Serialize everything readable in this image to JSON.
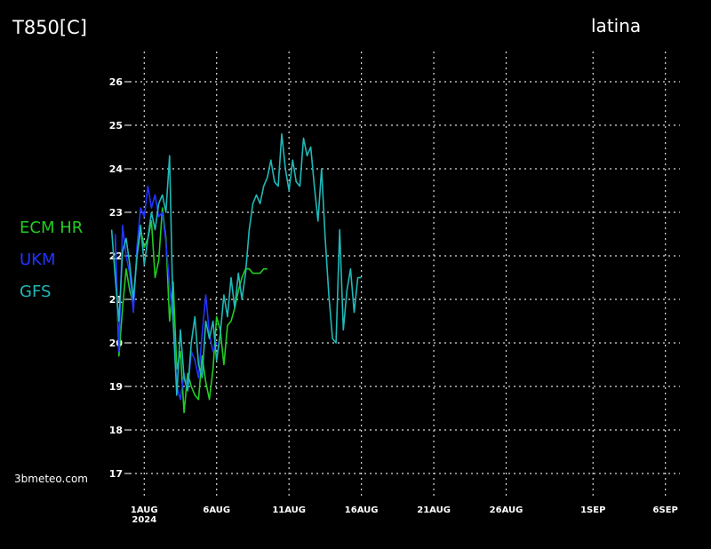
{
  "header": {
    "title": "T850[C]",
    "location": "latina"
  },
  "footer": {
    "watermark": "3bmeteo.com"
  },
  "chart_data": {
    "type": "line",
    "title": "T850[C]",
    "location": "latina",
    "xlabel": "",
    "ylabel": "",
    "ylim": [
      16.5,
      26.5
    ],
    "xlim_days": [
      30,
      68
    ],
    "y_ticks": [
      17,
      18,
      19,
      20,
      21,
      22,
      23,
      24,
      25,
      26
    ],
    "x_ticks": [
      {
        "label": "1AUG",
        "sublabel": "2024"
      },
      {
        "label": "6AUG"
      },
      {
        "label": "11AUG"
      },
      {
        "label": "16AUG"
      },
      {
        "label": "21AUG"
      },
      {
        "label": "26AUG"
      },
      {
        "label": "1SEP"
      },
      {
        "label": "6SEP"
      }
    ],
    "x_tick_days": [
      31,
      36,
      41,
      46,
      51,
      56,
      62,
      67
    ],
    "legend_placement": "left",
    "grid": true,
    "series": [
      {
        "name": "ECM HR",
        "color": "#22cc22",
        "x": [
          29.0,
          29.25,
          29.5,
          29.75,
          30.0,
          30.25,
          30.5,
          30.75,
          31.0,
          31.25,
          31.5,
          31.75,
          32.0,
          32.25,
          32.5,
          32.75,
          33.0,
          33.25,
          33.5,
          33.75,
          34.0,
          34.25,
          34.5,
          34.75,
          35.0,
          35.25,
          35.5,
          35.75,
          36.0,
          36.25,
          36.5,
          36.75,
          37.0,
          37.25,
          37.5,
          37.75,
          38.0,
          38.25,
          38.5,
          38.75,
          39.0,
          39.25,
          39.5
        ],
        "y": [
          22.4,
          19.7,
          20.8,
          21.7,
          21.2,
          20.9,
          22.0,
          22.6,
          22.2,
          22.4,
          22.8,
          21.5,
          21.9,
          23.1,
          22.4,
          20.5,
          21.4,
          19.4,
          19.8,
          18.4,
          19.3,
          19.0,
          18.8,
          18.7,
          19.7,
          19.1,
          18.7,
          19.4,
          20.6,
          20.3,
          19.5,
          20.4,
          20.5,
          20.8,
          21.2,
          21.5,
          21.7,
          21.7,
          21.6,
          21.6,
          21.6,
          21.7,
          21.7
        ]
      },
      {
        "name": "UKM",
        "color": "#2233ff",
        "x": [
          29.0,
          29.25,
          29.5,
          29.75,
          30.0,
          30.25,
          30.5,
          30.75,
          31.0,
          31.25,
          31.5,
          31.75,
          32.0,
          32.25,
          32.5,
          32.75,
          33.0,
          33.25,
          33.5,
          33.75,
          34.0,
          34.25,
          34.5,
          34.75,
          35.0,
          35.25,
          35.5,
          35.75,
          36.0
        ],
        "y": [
          22.5,
          19.8,
          22.7,
          22.0,
          21.6,
          20.7,
          22.2,
          23.1,
          22.9,
          23.6,
          23.1,
          23.4,
          22.9,
          23.0,
          22.3,
          21.3,
          20.5,
          19.0,
          18.7,
          19.3,
          18.9,
          19.8,
          19.6,
          19.2,
          20.2,
          21.1,
          20.2,
          19.8,
          20.0
        ]
      },
      {
        "name": "GFS",
        "color": "#20b8b8",
        "x": [
          28.75,
          29.0,
          29.25,
          29.5,
          29.75,
          30.0,
          30.25,
          30.5,
          30.75,
          31.0,
          31.25,
          31.5,
          31.75,
          32.0,
          32.25,
          32.5,
          32.75,
          33.0,
          33.25,
          33.5,
          33.75,
          34.0,
          34.25,
          34.5,
          34.75,
          35.0,
          35.25,
          35.5,
          35.75,
          36.0,
          36.25,
          36.5,
          36.75,
          37.0,
          37.25,
          37.5,
          37.75,
          38.0,
          38.25,
          38.5,
          38.75,
          39.0,
          39.25,
          39.5,
          39.75,
          40.0,
          40.25,
          40.5,
          40.75,
          41.0,
          41.25,
          41.5,
          41.75,
          42.0,
          42.25,
          42.5,
          42.75,
          43.0,
          43.25,
          43.5,
          43.75,
          44.0,
          44.25,
          44.5,
          44.75,
          45.0,
          45.25,
          45.5,
          45.75,
          46.0
        ],
        "y": [
          22.6,
          21.5,
          20.5,
          22.1,
          22.4,
          21.8,
          21.0,
          22.0,
          22.7,
          21.8,
          22.4,
          23.0,
          22.6,
          23.2,
          23.4,
          23.0,
          24.3,
          20.5,
          18.8,
          20.3,
          19.2,
          18.9,
          20.0,
          20.6,
          19.5,
          19.2,
          20.5,
          20.1,
          20.5,
          19.6,
          20.2,
          21.1,
          20.6,
          21.5,
          20.8,
          21.6,
          21.0,
          21.6,
          22.6,
          23.2,
          23.4,
          23.2,
          23.6,
          23.8,
          24.2,
          23.7,
          23.6,
          24.8,
          24.0,
          23.5,
          24.2,
          23.7,
          23.6,
          24.7,
          24.3,
          24.5,
          23.6,
          22.8,
          24.0,
          22.4,
          21.1,
          20.1,
          20.0,
          22.6,
          20.3,
          21.2,
          21.7,
          20.7,
          21.5,
          21.5
        ]
      }
    ]
  }
}
